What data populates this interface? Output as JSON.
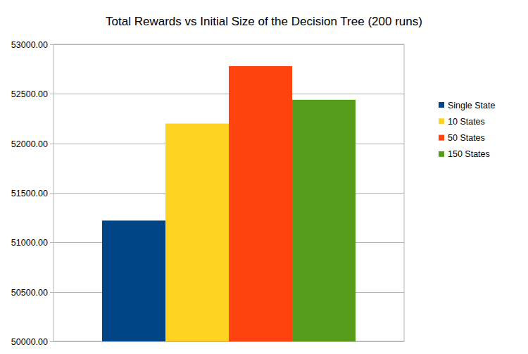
{
  "chart_data": {
    "type": "bar",
    "title": "Total Rewards vs Initial Size of the Decision Tree (200 runs)",
    "categories": [
      null
    ],
    "series": [
      {
        "name": "Single State",
        "color": "#004586",
        "values": [
          51220
        ]
      },
      {
        "name": "10 States",
        "color": "#ffd320",
        "values": [
          52200
        ]
      },
      {
        "name": "50 States",
        "color": "#ff420e",
        "values": [
          52780
        ]
      },
      {
        "name": "150 States",
        "color": "#579d1c",
        "values": [
          52440
        ]
      }
    ],
    "ylim": [
      50000,
      53000
    ],
    "yticks": [
      {
        "value": 50000,
        "label": "50000.00"
      },
      {
        "value": 50500,
        "label": "50500.00"
      },
      {
        "value": 51000,
        "label": "51000.00"
      },
      {
        "value": 51500,
        "label": "51500.00"
      },
      {
        "value": 52000,
        "label": "52000.00"
      },
      {
        "value": 52500,
        "label": "52500.00"
      },
      {
        "value": 53000,
        "label": "53000.00"
      }
    ],
    "grid": true,
    "legend": "right"
  }
}
